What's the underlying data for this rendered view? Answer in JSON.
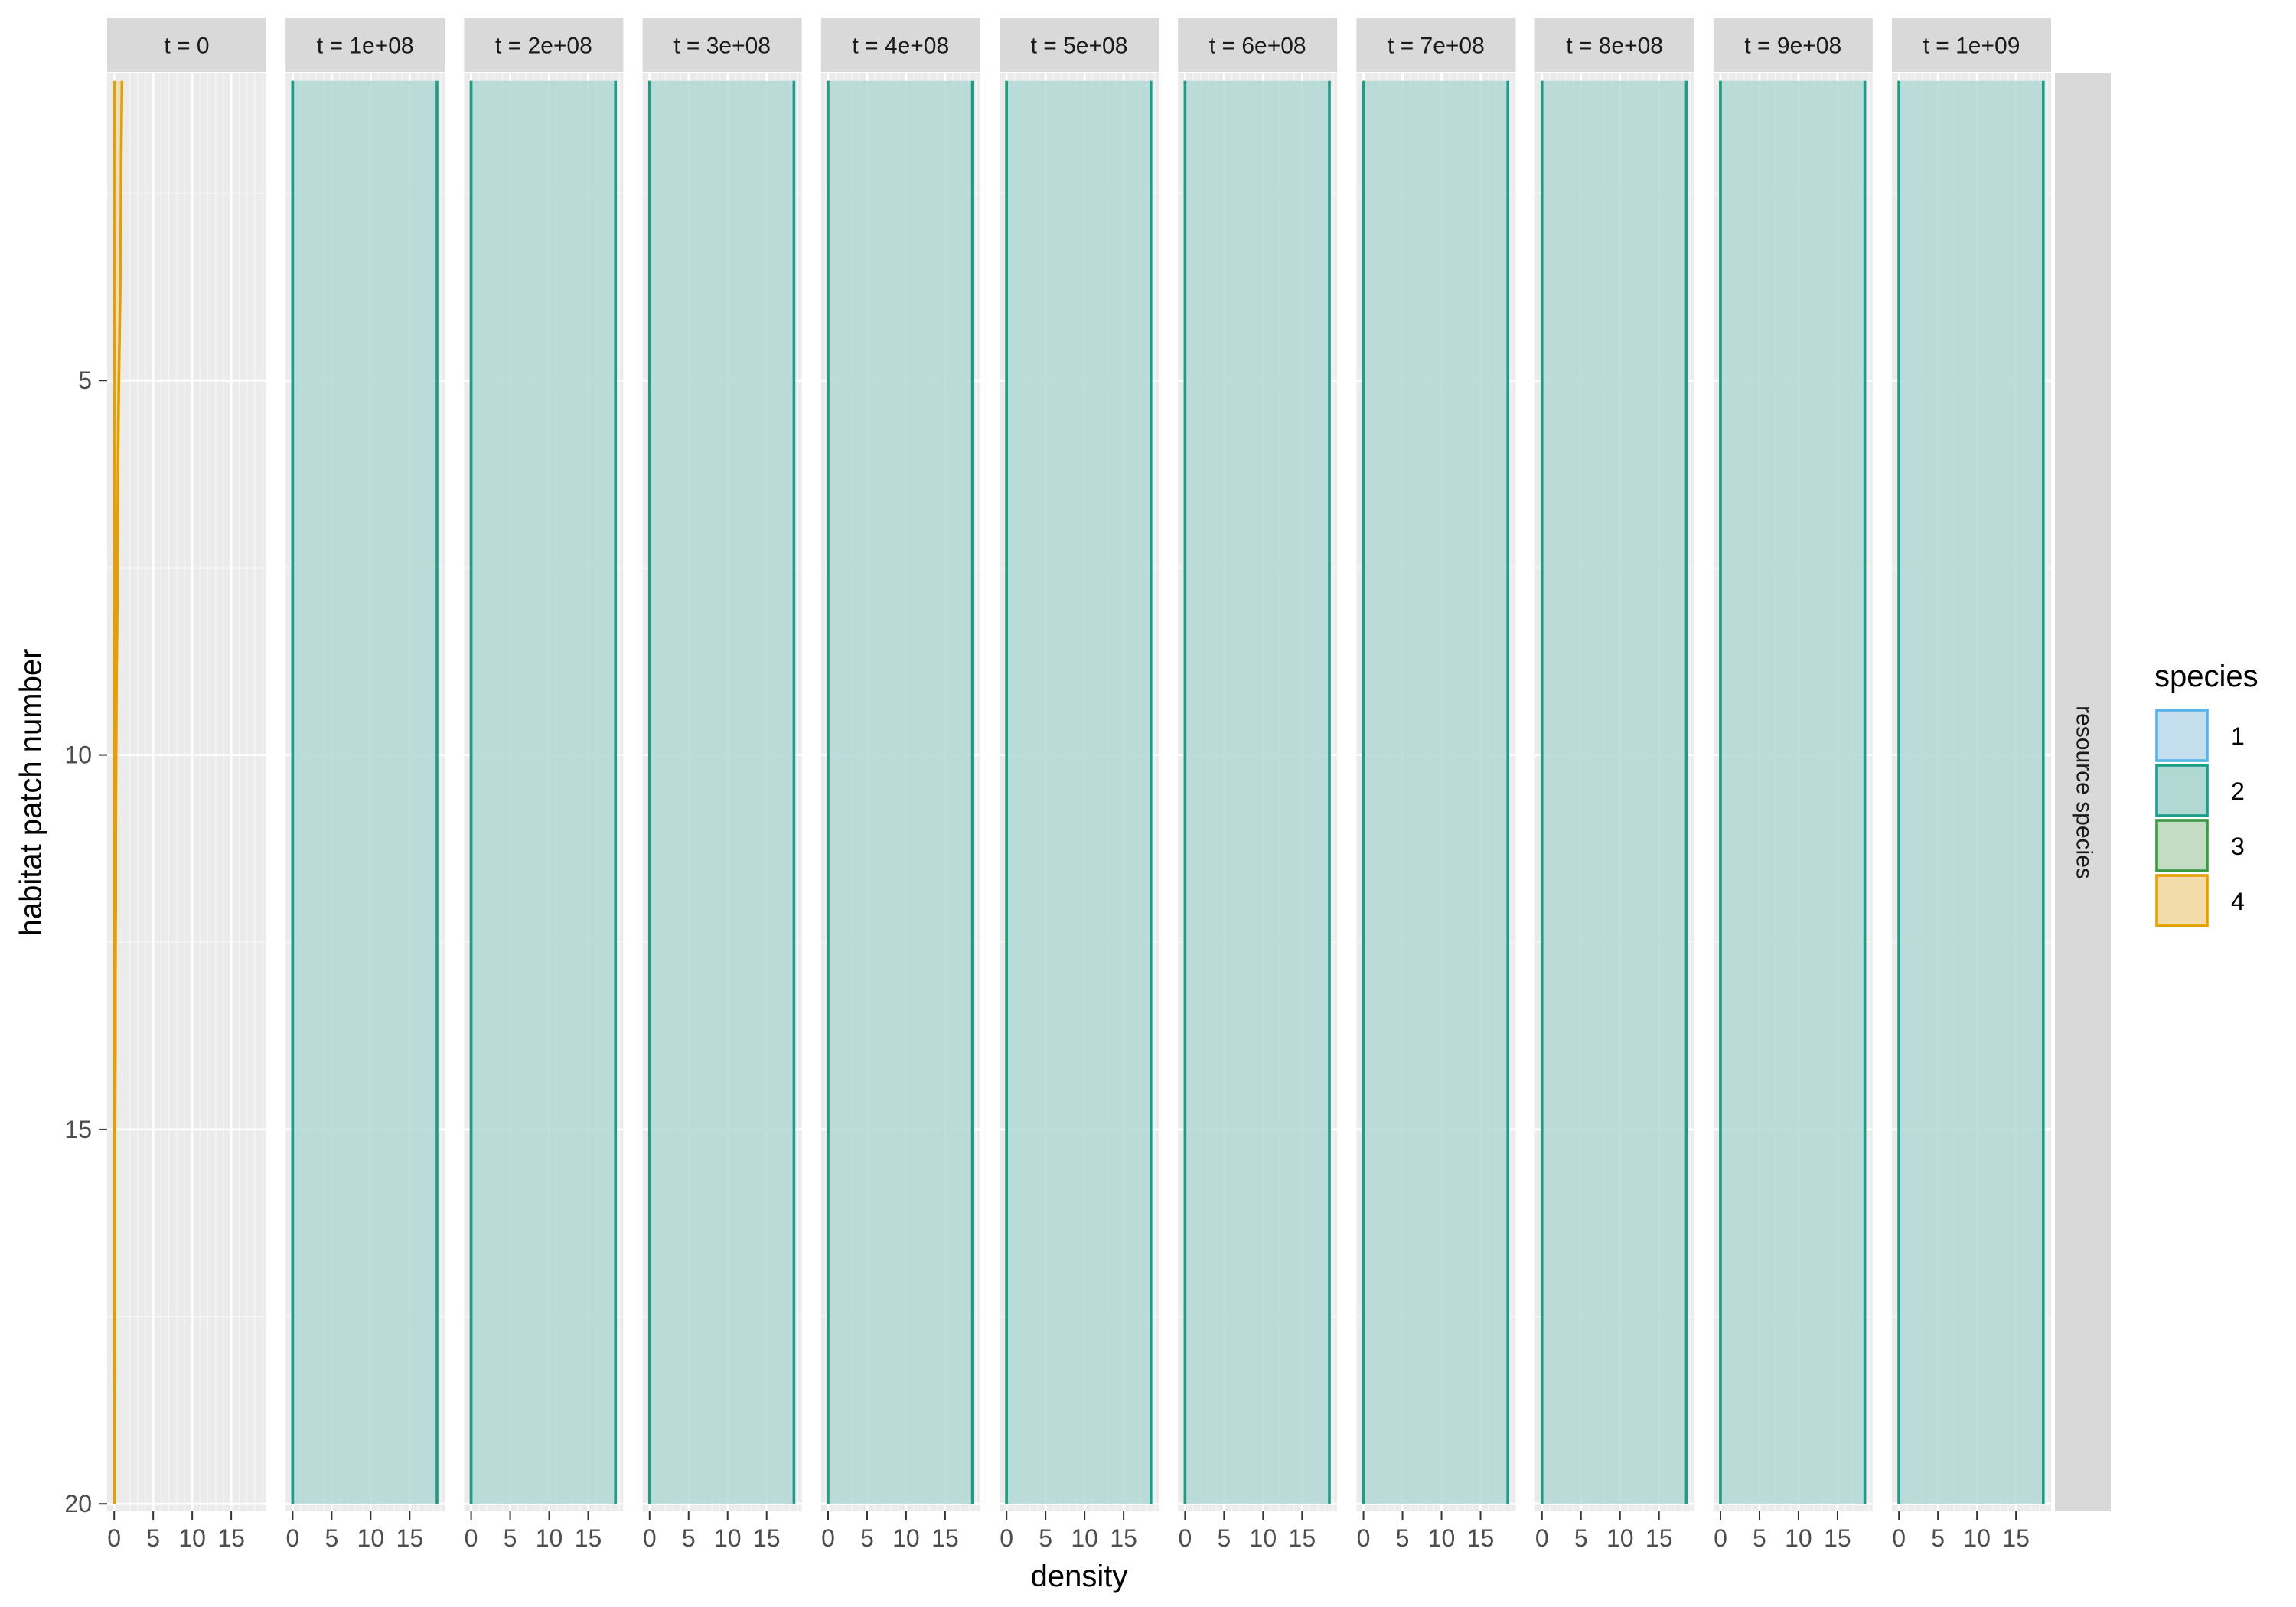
{
  "chart_data": {
    "type": "area",
    "xlabel": "density",
    "ylabel": "habitat patch number",
    "row_strip": "resource species",
    "facets": [
      "t = 0",
      "t = 1e+08",
      "t = 2e+08",
      "t = 3e+08",
      "t = 4e+08",
      "t = 5e+08",
      "t = 6e+08",
      "t = 7e+08",
      "t = 8e+08",
      "t = 9e+08",
      "t = 1e+09"
    ],
    "xlim": [
      -0.9,
      19.5
    ],
    "ylim": [
      20.1,
      0.9
    ],
    "x_ticks": [
      0,
      5,
      10,
      15
    ],
    "x_tick_labels": [
      "0",
      "5",
      "10",
      "15"
    ],
    "y_ticks": [
      5,
      10,
      15,
      20
    ],
    "y_tick_labels": [
      "5",
      "10",
      "15",
      "20"
    ],
    "grid": true,
    "legend": {
      "title": "species",
      "position": "right",
      "entries": [
        {
          "label": "1",
          "fill": "#c6dfee",
          "stroke": "#56b4e9"
        },
        {
          "label": "2",
          "fill": "#b2d8d4",
          "stroke": "#1a9e8a"
        },
        {
          "label": "3",
          "fill": "#c5dcc4",
          "stroke": "#3a9a44"
        },
        {
          "label": "4",
          "fill": "#f1dcaa",
          "stroke": "#e69f00"
        }
      ]
    },
    "patches": [
      1,
      20
    ],
    "series_by_facet": [
      {
        "facet": "t = 0",
        "series": [
          {
            "species": "4",
            "values": [
              1.0,
              0.9,
              0.85,
              0.75,
              0.6,
              0.5,
              0.45,
              0.4,
              0.3,
              0.25,
              0.2,
              0.2,
              0.15,
              0.15,
              0.1,
              0.1,
              0.1,
              0.1,
              0.05,
              0.05
            ]
          }
        ]
      },
      {
        "facet": "t = 1e+08",
        "series": [
          {
            "species": "4",
            "values": [
              0,
              0
            ]
          },
          {
            "species": "2",
            "values": [
              18.5,
              18.5
            ]
          }
        ]
      },
      {
        "facet": "t = 2e+08",
        "series": [
          {
            "species": "4",
            "values": [
              0,
              0
            ]
          },
          {
            "species": "2",
            "values": [
              18.5,
              18.5
            ]
          }
        ]
      },
      {
        "facet": "t = 3e+08",
        "series": [
          {
            "species": "4",
            "values": [
              0,
              0
            ]
          },
          {
            "species": "2",
            "values": [
              18.5,
              18.5
            ]
          }
        ]
      },
      {
        "facet": "t = 4e+08",
        "series": [
          {
            "species": "4",
            "values": [
              0,
              0
            ]
          },
          {
            "species": "2",
            "values": [
              18.5,
              18.5
            ]
          }
        ]
      },
      {
        "facet": "t = 5e+08",
        "series": [
          {
            "species": "4",
            "values": [
              0,
              0
            ]
          },
          {
            "species": "2",
            "values": [
              18.5,
              18.5
            ]
          }
        ]
      },
      {
        "facet": "t = 6e+08",
        "series": [
          {
            "species": "4",
            "values": [
              0,
              0
            ]
          },
          {
            "species": "2",
            "values": [
              18.5,
              18.5
            ]
          }
        ]
      },
      {
        "facet": "t = 7e+08",
        "series": [
          {
            "species": "4",
            "values": [
              0,
              0
            ]
          },
          {
            "species": "2",
            "values": [
              18.5,
              18.5
            ]
          }
        ]
      },
      {
        "facet": "t = 8e+08",
        "series": [
          {
            "species": "4",
            "values": [
              0,
              0
            ]
          },
          {
            "species": "2",
            "values": [
              18.5,
              18.5
            ]
          }
        ]
      },
      {
        "facet": "t = 9e+08",
        "series": [
          {
            "species": "4",
            "values": [
              0,
              0
            ]
          },
          {
            "species": "2",
            "values": [
              18.5,
              18.5
            ]
          }
        ]
      },
      {
        "facet": "t = 1e+09",
        "series": [
          {
            "species": "4",
            "values": [
              0,
              0
            ]
          },
          {
            "species": "2",
            "values": [
              18.5,
              18.5
            ]
          }
        ]
      }
    ]
  }
}
